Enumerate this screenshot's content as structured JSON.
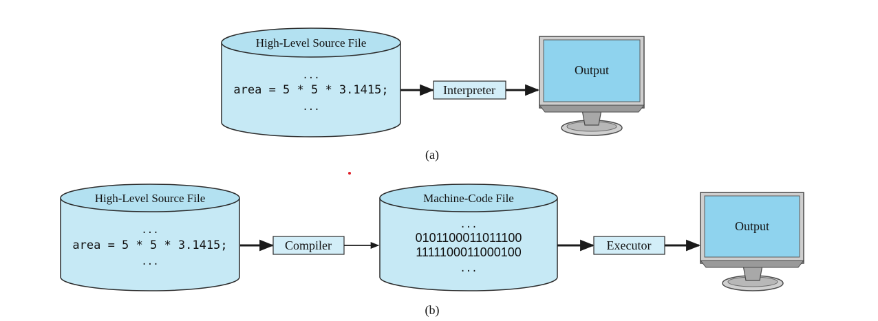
{
  "colors": {
    "cylinder_fill": "#c6e9f5",
    "cylinder_top": "#b3e1f1",
    "stroke": "#2b2b2b",
    "box_fill": "#d3eef8",
    "screen": "#8fd3ee",
    "monitor_frame": "#c9c9c9",
    "monitor_dark": "#9a9a9a",
    "arrow": "#1a1a1a",
    "dot": "#e0202a"
  },
  "icons": [
    "database-cylinder-icon",
    "monitor-icon",
    "arrow-right-icon"
  ],
  "part_a": {
    "source_file": {
      "title": "High-Level Source File",
      "ellipsis_top": "...",
      "code": "area = 5 * 5 * 3.1415;",
      "ellipsis_bottom": "..."
    },
    "interpreter_label": "Interpreter",
    "output_label": "Output",
    "caption": "(a)"
  },
  "part_b": {
    "source_file": {
      "title": "High-Level Source File",
      "ellipsis_top": "...",
      "code": "area = 5 * 5 * 3.1415;",
      "ellipsis_bottom": "..."
    },
    "compiler_label": "Compiler",
    "machine_file": {
      "title": "Machine-Code File",
      "ellipsis_top": "...",
      "line1": "0101100011011100",
      "line2": "1111100011000100",
      "ellipsis_bottom": "..."
    },
    "executor_label": "Executor",
    "output_label": "Output",
    "caption": "(b)"
  }
}
